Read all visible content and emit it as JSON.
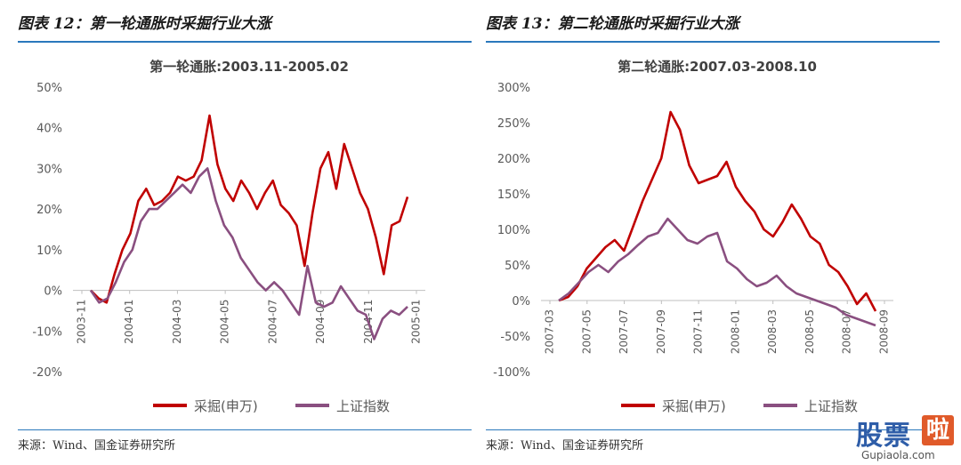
{
  "left_panel": {
    "fig_title": "图表 12：第一轮通胀时采掘行业大涨",
    "source": "来源：Wind、国金证券研究所"
  },
  "right_panel": {
    "fig_title": "图表 13：第二轮通胀时采掘行业大涨",
    "source": "来源：Wind、国金证券研究所"
  },
  "watermark": {
    "text": "股票",
    "badge": "啦",
    "url": "Gupiaola.com"
  },
  "chart_data": [
    {
      "type": "line",
      "title": "第一轮通胀:2003.11-2005.02",
      "ylim": [
        -20,
        50
      ],
      "yticks": [
        "50%",
        "40%",
        "30%",
        "20%",
        "10%",
        "0%",
        "-10%",
        "-20%"
      ],
      "xticks": [
        "2003-11",
        "2004-01",
        "2004-03",
        "2004-05",
        "2004-07",
        "2004-09",
        "2004-11",
        "2005-01"
      ],
      "grid": false,
      "legend": "bottom",
      "series": [
        {
          "name": "采掘(申万)",
          "color": "#c00000",
          "values": [
            0,
            -2,
            -3,
            4,
            10,
            14,
            22,
            25,
            21,
            22,
            24,
            28,
            27,
            28,
            32,
            43,
            31,
            25,
            22,
            27,
            24,
            20,
            24,
            27,
            21,
            19,
            16,
            6,
            19,
            30,
            34,
            25,
            36,
            30,
            24,
            20,
            13,
            4,
            16,
            17,
            23
          ]
        },
        {
          "name": "上证指数",
          "color": "#8a4f80",
          "values": [
            0,
            -3,
            -2,
            2,
            7,
            10,
            17,
            20,
            20,
            22,
            24,
            26,
            24,
            28,
            30,
            22,
            16,
            13,
            8,
            5,
            2,
            0,
            2,
            0,
            -3,
            -6,
            6,
            -3,
            -4,
            -3,
            1,
            -2,
            -5,
            -6,
            -12,
            -7,
            -5,
            -6,
            -4
          ]
        }
      ]
    },
    {
      "type": "line",
      "title": "第二轮通胀:2007.03-2008.10",
      "ylim": [
        -100,
        300
      ],
      "yticks": [
        "300%",
        "250%",
        "200%",
        "150%",
        "100%",
        "50%",
        "0%",
        "-50%",
        "-100%"
      ],
      "xticks": [
        "2007-03",
        "2007-05",
        "2007-07",
        "2007-09",
        "2007-11",
        "2008-01",
        "2008-03",
        "2008-05",
        "2008-07",
        "2008-09"
      ],
      "grid": false,
      "legend": "bottom",
      "series": [
        {
          "name": "采掘(申万)",
          "color": "#c00000",
          "values": [
            0,
            5,
            20,
            45,
            60,
            75,
            85,
            70,
            105,
            140,
            170,
            200,
            265,
            240,
            190,
            165,
            170,
            175,
            195,
            160,
            140,
            125,
            100,
            90,
            110,
            135,
            115,
            90,
            80,
            50,
            40,
            20,
            -5,
            10,
            -15
          ]
        },
        {
          "name": "上证指数",
          "color": "#8a4f80",
          "values": [
            0,
            10,
            25,
            40,
            50,
            40,
            55,
            65,
            78,
            90,
            95,
            115,
            100,
            85,
            80,
            90,
            95,
            55,
            45,
            30,
            20,
            25,
            35,
            20,
            10,
            5,
            0,
            -5,
            -10,
            -20,
            -25,
            -30,
            -35
          ]
        }
      ]
    }
  ]
}
